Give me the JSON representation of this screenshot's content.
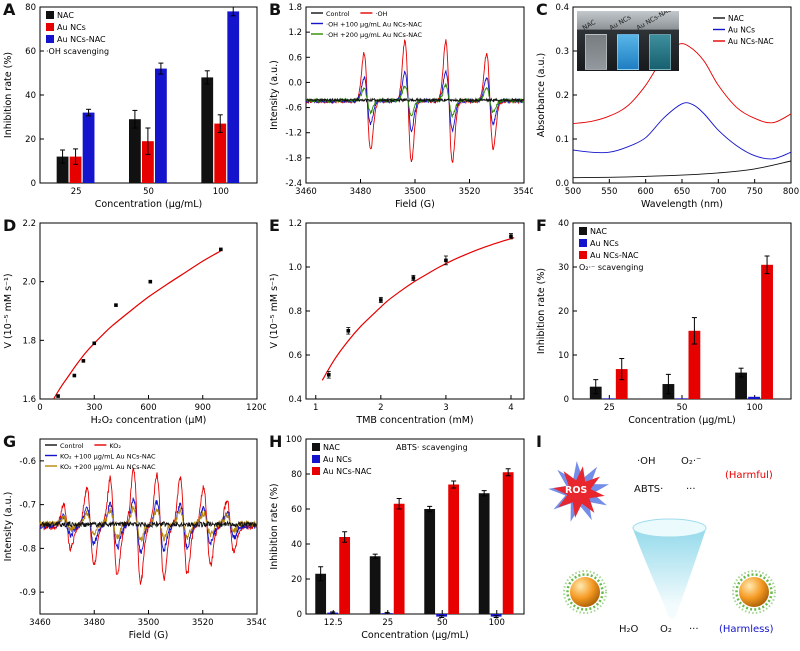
{
  "chart_data": [
    {
      "panel": "A",
      "type": "bar",
      "xlabel": "Concentration (μg/mL)",
      "ylabel": "Inhibition rate (%)",
      "categories": [
        "25",
        "50",
        "100"
      ],
      "ylim": [
        0,
        80
      ],
      "yticks": [
        "0",
        "20",
        "40",
        "60",
        "80"
      ],
      "series": [
        {
          "name": "NAC",
          "color": "#111111",
          "values": [
            12,
            29,
            48
          ],
          "errors": [
            3,
            4,
            3
          ]
        },
        {
          "name": "Au NCs",
          "color": "#e60000",
          "values": [
            12,
            19,
            27
          ],
          "errors": [
            3.5,
            6,
            4
          ]
        },
        {
          "name": "Au NCs-NAC",
          "color": "#1414cc",
          "values": [
            32,
            52,
            78
          ],
          "errors": [
            1.5,
            2.5,
            2
          ]
        }
      ],
      "legend": {
        "swatch": "box",
        "size": 8,
        "x": 6,
        "y": 4,
        "note": "·OH scavenging"
      }
    },
    {
      "panel": "B",
      "type": "line",
      "xlabel": "Field (G)",
      "ylabel": "Intensity (a.u.)",
      "xlim": [
        3460,
        3540
      ],
      "xticks": [
        "3460",
        "3480",
        "3500",
        "3520",
        "3540"
      ],
      "ylim": [
        -2.4,
        1.8
      ],
      "yticks": [
        "-2.4",
        "-1.8",
        "-1.2",
        "-0.6",
        "0.0",
        "0.6",
        "1.2",
        "1.8"
      ],
      "series": [
        {
          "name": "Control",
          "color": "#111111",
          "z": 4,
          "esr": {
            "baseline": -0.42,
            "noise": 0.03,
            "width": 1.2,
            "seed": 11,
            "peaks": []
          }
        },
        {
          "name": "·OH",
          "color": "#e60000",
          "z": 1,
          "esr": {
            "baseline": -0.45,
            "noise": 0.04,
            "width": 1.2,
            "seed": 12,
            "peaks": [
              [
                3482.5,
                1.15
              ],
              [
                3497.5,
                1.45
              ],
              [
                3512.5,
                1.45
              ],
              [
                3527.5,
                1.15
              ]
            ]
          }
        },
        {
          "name": "·OH +100 μg/mL Au NCs-NAC",
          "color": "#1414cc",
          "z": 2,
          "esr": {
            "baseline": -0.44,
            "noise": 0.04,
            "width": 1.2,
            "seed": 13,
            "peaks": [
              [
                3482.5,
                0.55
              ],
              [
                3497.5,
                0.7
              ],
              [
                3512.5,
                0.7
              ],
              [
                3527.5,
                0.55
              ]
            ]
          }
        },
        {
          "name": "·OH +200 μg/mL Au NCs-NAC",
          "color": "#2e8b00",
          "z": 3,
          "esr": {
            "baseline": -0.43,
            "noise": 0.04,
            "width": 1.2,
            "seed": 14,
            "peaks": [
              [
                3482.5,
                0.28
              ],
              [
                3497.5,
                0.36
              ],
              [
                3512.5,
                0.36
              ],
              [
                3527.5,
                0.28
              ]
            ]
          }
        }
      ],
      "legend": {
        "swatch": "line",
        "size": 6.5,
        "x": 5,
        "y": 3,
        "rows": [
          [
            0,
            1
          ],
          [
            2
          ],
          [
            3
          ]
        ]
      }
    },
    {
      "panel": "C",
      "type": "line",
      "xlabel": "Wavelength (nm)",
      "ylabel": "Absorbance (a.u.)",
      "xlim": [
        500,
        800
      ],
      "xticks": [
        "500",
        "550",
        "600",
        "650",
        "700",
        "750",
        "800"
      ],
      "ylim": [
        0,
        0.4
      ],
      "yticks": [
        "0.0",
        "0.1",
        "0.2",
        "0.3",
        "0.4"
      ],
      "series": [
        {
          "name": "NAC",
          "color": "#111111",
          "smooth": true,
          "points": [
            [
              500,
              0.012
            ],
            [
              550,
              0.013
            ],
            [
              600,
              0.015
            ],
            [
              650,
              0.018
            ],
            [
              700,
              0.023
            ],
            [
              750,
              0.032
            ],
            [
              800,
              0.05
            ]
          ]
        },
        {
          "name": "Au NCs",
          "color": "#1414cc",
          "smooth": true,
          "points": [
            [
              500,
              0.075
            ],
            [
              525,
              0.07
            ],
            [
              550,
              0.07
            ],
            [
              575,
              0.082
            ],
            [
              600,
              0.103
            ],
            [
              625,
              0.148
            ],
            [
              650,
              0.18
            ],
            [
              665,
              0.178
            ],
            [
              680,
              0.158
            ],
            [
              700,
              0.12
            ],
            [
              725,
              0.085
            ],
            [
              750,
              0.062
            ],
            [
              775,
              0.055
            ],
            [
              800,
              0.07
            ]
          ]
        },
        {
          "name": "Au NCs-NAC",
          "color": "#e60000",
          "smooth": true,
          "points": [
            [
              500,
              0.135
            ],
            [
              525,
              0.14
            ],
            [
              550,
              0.152
            ],
            [
              575,
              0.175
            ],
            [
              600,
              0.222
            ],
            [
              625,
              0.287
            ],
            [
              645,
              0.315
            ],
            [
              660,
              0.31
            ],
            [
              680,
              0.278
            ],
            [
              700,
              0.222
            ],
            [
              725,
              0.172
            ],
            [
              750,
              0.147
            ],
            [
              775,
              0.137
            ],
            [
              800,
              0.157
            ]
          ]
        }
      ],
      "legend": {
        "swatch": "line",
        "size": 7.5,
        "anchor": "tr",
        "w": 78,
        "y": 8
      },
      "inset": {
        "labels": [
          "NAC",
          "Au NCs",
          "Au NCs-NAC"
        ]
      }
    },
    {
      "panel": "D",
      "type": "scatter",
      "xlabel": "H₂O₂ concentration (μM)",
      "ylabel": "V (10⁻⁵ mM s⁻¹)",
      "xlim": [
        0,
        1200
      ],
      "xticks": [
        "0",
        "300",
        "600",
        "900",
        "1200"
      ],
      "ylim": [
        1.6,
        2.2
      ],
      "yticks": [
        "1.6",
        "1.8",
        "2.0",
        "2.2"
      ],
      "points": [
        [
          100,
          1.61
        ],
        [
          190,
          1.68
        ],
        [
          240,
          1.73
        ],
        [
          300,
          1.79
        ],
        [
          420,
          1.92
        ],
        [
          610,
          2.0
        ],
        [
          1000,
          2.11
        ]
      ],
      "fit": [
        [
          75,
          1.6
        ],
        [
          120,
          1.645
        ],
        [
          160,
          1.68
        ],
        [
          200,
          1.716
        ],
        [
          250,
          1.756
        ],
        [
          300,
          1.79
        ],
        [
          350,
          1.821
        ],
        [
          400,
          1.85
        ],
        [
          500,
          1.9
        ],
        [
          600,
          1.948
        ],
        [
          700,
          1.99
        ],
        [
          800,
          2.03
        ],
        [
          900,
          2.07
        ],
        [
          1000,
          2.105
        ]
      ],
      "fit_color": "#e60000"
    },
    {
      "panel": "E",
      "type": "scatter",
      "xlabel": "TMB concentration (mM)",
      "ylabel": "V (10⁻⁵ mM s⁻¹)",
      "xlim": [
        0.85,
        4.2
      ],
      "xticks": [
        "1",
        "2",
        "3",
        "4"
      ],
      "ylim": [
        0.4,
        1.2
      ],
      "yticks": [
        "0.4",
        "0.6",
        "0.8",
        "1.0",
        "1.2"
      ],
      "points": [
        [
          1.2,
          0.51
        ],
        [
          1.5,
          0.71
        ],
        [
          2.0,
          0.85
        ],
        [
          2.5,
          0.95
        ],
        [
          3.0,
          1.03
        ],
        [
          4.0,
          1.14
        ]
      ],
      "errors": [
        0.015,
        0.015,
        0.012,
        0.012,
        0.02,
        0.012
      ],
      "fit": [
        [
          1.1,
          0.485
        ],
        [
          1.3,
          0.585
        ],
        [
          1.5,
          0.665
        ],
        [
          1.7,
          0.733
        ],
        [
          1.9,
          0.79
        ],
        [
          2.1,
          0.845
        ],
        [
          2.3,
          0.89
        ],
        [
          2.5,
          0.931
        ],
        [
          2.7,
          0.966
        ],
        [
          2.9,
          1.0
        ],
        [
          3.1,
          1.03
        ],
        [
          3.3,
          1.056
        ],
        [
          3.5,
          1.08
        ],
        [
          3.7,
          1.101
        ],
        [
          3.9,
          1.12
        ],
        [
          4.05,
          1.133
        ]
      ],
      "fit_color": "#e60000"
    },
    {
      "panel": "F",
      "type": "bar",
      "xlabel": "Concentration (μg/mL)",
      "ylabel": "Inhibition rate (%)",
      "categories": [
        "25",
        "50",
        "100"
      ],
      "ylim": [
        0,
        40
      ],
      "yticks": [
        "0",
        "10",
        "20",
        "30",
        "40"
      ],
      "series": [
        {
          "name": "NAC",
          "color": "#111111",
          "values": [
            2.8,
            3.4,
            6
          ],
          "errors": [
            1.6,
            2.2,
            1
          ]
        },
        {
          "name": "Au NCs",
          "color": "#1414cc",
          "values": [
            0.15,
            0.15,
            0.5
          ],
          "errors": [
            0,
            0,
            0
          ]
        },
        {
          "name": "Au NCs-NAC",
          "color": "#e60000",
          "values": [
            6.8,
            15.5,
            30.5
          ],
          "errors": [
            2.4,
            3,
            2
          ]
        }
      ],
      "legend": {
        "swatch": "box",
        "size": 8,
        "x": 6,
        "y": 4,
        "note": "O₂·⁻ scavenging"
      }
    },
    {
      "panel": "G",
      "type": "line",
      "xlabel": "Field (G)",
      "ylabel": "Intensity (a.u.)",
      "xlim": [
        3460,
        3540
      ],
      "xticks": [
        "3460",
        "3480",
        "3500",
        "3520",
        "3540"
      ],
      "ylim": [
        -0.95,
        -0.55
      ],
      "yticks": [
        "-0.9",
        "-0.8",
        "-0.7",
        "-0.6"
      ],
      "series": [
        {
          "name": "Control",
          "color": "#111111",
          "z": 4,
          "esr": {
            "baseline": -0.745,
            "noise": 0.006,
            "width": 1.1,
            "seed": 21,
            "peaks": []
          }
        },
        {
          "name": "KO₂",
          "color": "#e60000",
          "z": 1,
          "esr": {
            "baseline": -0.75,
            "noise": 0.007,
            "width": 1.3,
            "seed": 22,
            "peaks": [
              [
                3470,
                0.05
              ],
              [
                3478.6,
                0.09
              ],
              [
                3487.2,
                0.11
              ],
              [
                3495.8,
                0.13
              ],
              [
                3504.4,
                0.12
              ],
              [
                3513,
                0.11
              ],
              [
                3521.6,
                0.09
              ],
              [
                3530.2,
                0.06
              ]
            ]
          }
        },
        {
          "name": "KO₂ +100 μg/mL Au NCs-NAC",
          "color": "#1414cc",
          "z": 2,
          "esr": {
            "baseline": -0.748,
            "noise": 0.007,
            "width": 1.3,
            "seed": 23,
            "peaks": [
              [
                3470,
                0.022
              ],
              [
                3478.6,
                0.04
              ],
              [
                3487.2,
                0.05
              ],
              [
                3495.8,
                0.06
              ],
              [
                3504.4,
                0.055
              ],
              [
                3513,
                0.05
              ],
              [
                3521.6,
                0.04
              ],
              [
                3530.2,
                0.028
              ]
            ]
          }
        },
        {
          "name": "KO₂ +200 μg/mL Au NCs-NAC",
          "color": "#b8860b",
          "z": 3,
          "esr": {
            "baseline": -0.744,
            "noise": 0.007,
            "width": 1.3,
            "seed": 24,
            "peaks": [
              [
                3470,
                0.014
              ],
              [
                3478.6,
                0.024
              ],
              [
                3487.2,
                0.03
              ],
              [
                3495.8,
                0.036
              ],
              [
                3504.4,
                0.033
              ],
              [
                3513,
                0.03
              ],
              [
                3521.6,
                0.024
              ],
              [
                3530.2,
                0.017
              ]
            ]
          }
        }
      ],
      "legend": {
        "swatch": "line",
        "size": 6.5,
        "x": 5,
        "y": 3,
        "rows": [
          [
            0,
            1
          ],
          [
            2
          ],
          [
            3
          ]
        ]
      }
    },
    {
      "panel": "H",
      "type": "bar",
      "xlabel": "Concentration (μg/mL)",
      "ylabel": "Inhibition rate (%)",
      "categories": [
        "12.5",
        "25",
        "50",
        "100"
      ],
      "ylim": [
        0,
        100
      ],
      "yticks": [
        "0",
        "20",
        "40",
        "60",
        "80",
        "100"
      ],
      "series": [
        {
          "name": "NAC",
          "color": "#111111",
          "values": [
            23,
            33,
            60,
            69
          ],
          "errors": [
            4,
            1.2,
            1.5,
            1.5
          ]
        },
        {
          "name": "Au NCs",
          "color": "#1414cc",
          "values": [
            0.8,
            0.5,
            -1.5,
            -1.5
          ],
          "errors": [
            0.4,
            0.4,
            0.5,
            0.5
          ]
        },
        {
          "name": "Au NCs-NAC",
          "color": "#e60000",
          "values": [
            44,
            63,
            74,
            81
          ],
          "errors": [
            3,
            3,
            2,
            2
          ]
        }
      ],
      "legend": {
        "swatch": "box",
        "size": 8,
        "x": 6,
        "y": 4,
        "note": "ABTS· scavenging",
        "note_right": true,
        "note_dx": 84
      }
    }
  ],
  "schematic": {
    "panel": "I",
    "ros_label": "ROS",
    "harmful": {
      "item1": "·OH",
      "item2": "O₂·⁻",
      "item3": "ABTS·",
      "dots": "···",
      "tag": "(Harmful)",
      "color": "#e60000"
    },
    "harmless": {
      "item1": "H₂O",
      "item2": "O₂",
      "dots": "···",
      "tag": "(Harmless)",
      "color": "#1414cc"
    },
    "colors": {
      "star": "#e8262d",
      "glow": "#5b79e4",
      "funnel": "#8fd8ea",
      "particle": "#f59a23",
      "corona": "#59b33a"
    }
  }
}
